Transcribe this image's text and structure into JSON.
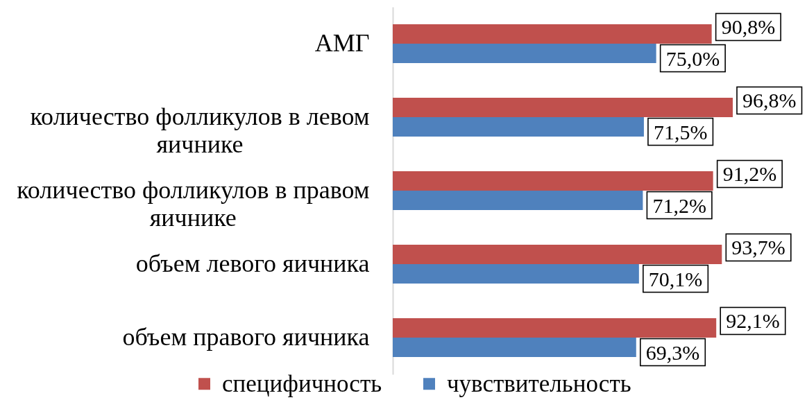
{
  "chart_data": {
    "type": "bar",
    "orientation": "horizontal",
    "categories": [
      "АМГ",
      "количество фолликулов в левом яичнике",
      "количество фолликулов в правом яичнике",
      "объем левого яичника",
      "объем правого яичника"
    ],
    "series": [
      {
        "name": "специфичность",
        "color": "#c0504d",
        "values": [
          90.8,
          96.8,
          91.2,
          93.7,
          92.1
        ],
        "value_labels": [
          "90,8%",
          "96,8%",
          "91,2%",
          "93,7%",
          "92,1%"
        ]
      },
      {
        "name": "чувствительность",
        "color": "#4f81bd",
        "values": [
          75.0,
          71.5,
          71.2,
          70.1,
          69.3
        ],
        "value_labels": [
          "75,0%",
          "71,5%",
          "71,2%",
          "70,1%",
          "69,3%"
        ]
      }
    ],
    "legend": "bottom",
    "tick_labels": "y"
  }
}
